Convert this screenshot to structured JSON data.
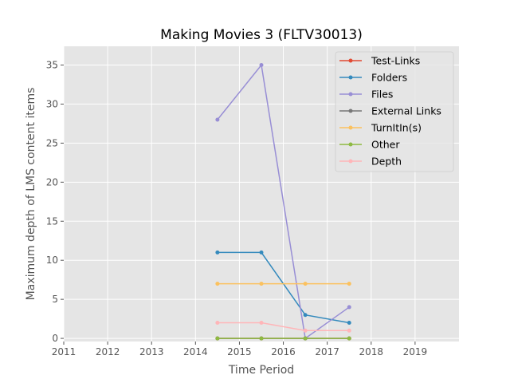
{
  "chart_data": {
    "type": "line",
    "title": "Making Movies 3 (FLTV30013)",
    "xlabel": "Time Period",
    "ylabel": "Maximum depth of LMS content items",
    "xlim": [
      2011,
      2020
    ],
    "ylim": [
      -0.4,
      37.4
    ],
    "xticks": [
      "2011",
      "2012",
      "2013",
      "2014",
      "2015",
      "2016",
      "2017",
      "2018",
      "2019"
    ],
    "yticks": [
      "0",
      "5",
      "10",
      "15",
      "20",
      "25",
      "30",
      "35"
    ],
    "grid": true,
    "legend_position": "top-right",
    "x": [
      2014.5,
      2015.5,
      2016.5,
      2017.5
    ],
    "series": [
      {
        "name": "Test-Links",
        "color": "#E24A33",
        "values": [
          0,
          0,
          0,
          0
        ]
      },
      {
        "name": "Folders",
        "color": "#348ABD",
        "values": [
          11,
          11,
          3,
          2
        ]
      },
      {
        "name": "Files",
        "color": "#988ED5",
        "values": [
          28,
          35,
          0,
          4
        ]
      },
      {
        "name": "External Links",
        "color": "#777777",
        "values": [
          0,
          0,
          0,
          0
        ]
      },
      {
        "name": "TurnItIn(s)",
        "color": "#FBC15E",
        "values": [
          7,
          7,
          7,
          7
        ]
      },
      {
        "name": "Other",
        "color": "#8EBA42",
        "values": [
          0,
          0,
          0,
          0
        ]
      },
      {
        "name": "Depth",
        "color": "#FFB5B8",
        "values": [
          2,
          2,
          1,
          1
        ]
      }
    ]
  }
}
